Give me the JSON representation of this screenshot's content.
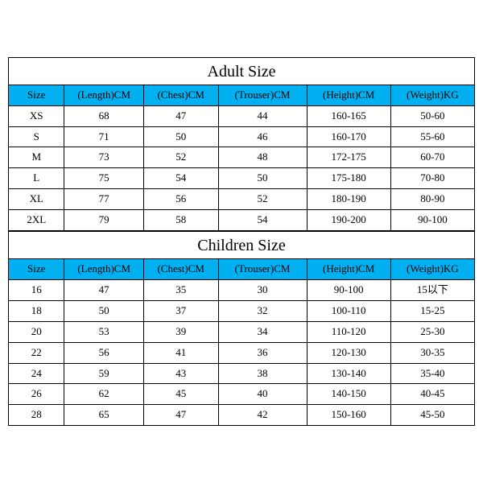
{
  "adult": {
    "title": "Adult Size",
    "columns": [
      "Size",
      "(Length)CM",
      "(Chest)CM",
      "(Trouser)CM",
      "(Height)CM",
      "(Weight)KG"
    ],
    "rows": [
      [
        "XS",
        "68",
        "47",
        "44",
        "160-165",
        "50-60"
      ],
      [
        "S",
        "71",
        "50",
        "46",
        "160-170",
        "55-60"
      ],
      [
        "M",
        "73",
        "52",
        "48",
        "172-175",
        "60-70"
      ],
      [
        "L",
        "75",
        "54",
        "50",
        "175-180",
        "70-80"
      ],
      [
        "XL",
        "77",
        "56",
        "52",
        "180-190",
        "80-90"
      ],
      [
        "2XL",
        "79",
        "58",
        "54",
        "190-200",
        "90-100"
      ]
    ],
    "header_bg": "#00b0f0",
    "border_color": "#000000",
    "title_fontsize": 20,
    "cell_fontsize": 13
  },
  "children": {
    "title": "Children Size",
    "columns": [
      "Size",
      "(Length)CM",
      "(Chest)CM",
      "(Trouser)CM",
      "(Height)CM",
      "(Weight)KG"
    ],
    "rows": [
      [
        "16",
        "47",
        "35",
        "30",
        "90-100",
        "15以下"
      ],
      [
        "18",
        "50",
        "37",
        "32",
        "100-110",
        "15-25"
      ],
      [
        "20",
        "53",
        "39",
        "34",
        "110-120",
        "25-30"
      ],
      [
        "22",
        "56",
        "41",
        "36",
        "120-130",
        "30-35"
      ],
      [
        "24",
        "59",
        "43",
        "38",
        "130-140",
        "35-40"
      ],
      [
        "26",
        "62",
        "45",
        "40",
        "140-150",
        "40-45"
      ],
      [
        "28",
        "65",
        "47",
        "42",
        "150-160",
        "45-50"
      ]
    ],
    "header_bg": "#00b0f0",
    "border_color": "#000000",
    "title_fontsize": 20,
    "cell_fontsize": 13
  },
  "col_classes": [
    "col-size",
    "col-length",
    "col-chest",
    "col-trouser",
    "col-height",
    "col-weight"
  ]
}
